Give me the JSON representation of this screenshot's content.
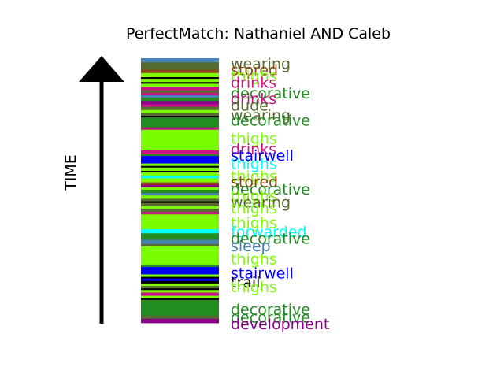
{
  "chart_data": {
    "type": "stacked-timeline",
    "title": "PerfectMatch: Nathaniel AND Caleb",
    "ylabel": "TIME",
    "colors": {
      "olive": "#556b2f",
      "brown": "#8b4513",
      "lime": "#7cfc00",
      "magenta": "#c71585",
      "green": "#228b22",
      "blue": "#0000ff",
      "cyan": "#00ffff",
      "steel": "#4682b4",
      "black": "#000000",
      "purple": "#8b008b"
    },
    "stripes": [
      {
        "c": "steel",
        "v": 5
      },
      {
        "c": "olive",
        "v": 5
      },
      {
        "c": "olive",
        "v": 4
      },
      {
        "c": "brown",
        "v": 4
      },
      {
        "c": "lime",
        "v": 5
      },
      {
        "c": "black",
        "v": 2
      },
      {
        "c": "lime",
        "v": 4
      },
      {
        "c": "black",
        "v": 2
      },
      {
        "c": "lime",
        "v": 4
      },
      {
        "c": "magenta",
        "v": 4
      },
      {
        "c": "olive",
        "v": 3
      },
      {
        "c": "magenta",
        "v": 3
      },
      {
        "c": "steel",
        "v": 3
      },
      {
        "c": "green",
        "v": 4
      },
      {
        "c": "purple",
        "v": 4
      },
      {
        "c": "magenta",
        "v": 3
      },
      {
        "c": "olive",
        "v": 4
      },
      {
        "c": "lime",
        "v": 4
      },
      {
        "c": "olive",
        "v": 3
      },
      {
        "c": "black",
        "v": 2
      },
      {
        "c": "green",
        "v": 4
      },
      {
        "c": "green",
        "v": 8
      },
      {
        "c": "magenta",
        "v": 3
      },
      {
        "c": "lime",
        "v": 25
      },
      {
        "c": "magenta",
        "v": 5
      },
      {
        "c": "green",
        "v": 2
      },
      {
        "c": "blue",
        "v": 9
      },
      {
        "c": "lime",
        "v": 3
      },
      {
        "c": "black",
        "v": 2
      },
      {
        "c": "lime",
        "v": 4
      },
      {
        "c": "black",
        "v": 2
      },
      {
        "c": "lime",
        "v": 4
      },
      {
        "c": "cyan",
        "v": 3
      },
      {
        "c": "lime",
        "v": 5
      },
      {
        "c": "brown",
        "v": 3
      },
      {
        "c": "purple",
        "v": 3
      },
      {
        "c": "lime",
        "v": 3
      },
      {
        "c": "green",
        "v": 4
      },
      {
        "c": "steel",
        "v": 3
      },
      {
        "c": "lime",
        "v": 4
      },
      {
        "c": "olive",
        "v": 3
      },
      {
        "c": "black",
        "v": 2
      },
      {
        "c": "olive",
        "v": 4
      },
      {
        "c": "lime",
        "v": 3
      },
      {
        "c": "olive",
        "v": 4
      },
      {
        "c": "magenta",
        "v": 3
      },
      {
        "c": "lime",
        "v": 18
      },
      {
        "c": "cyan",
        "v": 5
      },
      {
        "c": "green",
        "v": 8
      },
      {
        "c": "steel",
        "v": 5
      },
      {
        "c": "olive",
        "v": 3
      },
      {
        "c": "lime",
        "v": 22
      },
      {
        "c": "green",
        "v": 3
      },
      {
        "c": "blue",
        "v": 9
      },
      {
        "c": "lime",
        "v": 3
      },
      {
        "c": "black",
        "v": 2
      },
      {
        "c": "blue",
        "v": 3
      },
      {
        "c": "black",
        "v": 3
      },
      {
        "c": "lime",
        "v": 3
      },
      {
        "c": "olive",
        "v": 3
      },
      {
        "c": "black",
        "v": 2
      },
      {
        "c": "lime",
        "v": 3
      },
      {
        "c": "magenta",
        "v": 4
      },
      {
        "c": "lime",
        "v": 3
      },
      {
        "c": "black",
        "v": 2
      },
      {
        "c": "green",
        "v": 19
      },
      {
        "c": "olive",
        "v": 4
      },
      {
        "c": "purple",
        "v": 5
      }
    ],
    "labels": [
      {
        "text": "wearing",
        "c": "olive",
        "v": 7
      },
      {
        "text": "stored",
        "c": "brown",
        "v": 15
      },
      {
        "text": "thighs",
        "c": "lime",
        "v": 22
      },
      {
        "text": "drinks",
        "c": "magenta",
        "v": 30
      },
      {
        "text": "decorative",
        "c": "green",
        "v": 43
      },
      {
        "text": "drinks",
        "c": "magenta",
        "v": 50
      },
      {
        "text": "dude",
        "c": "olive",
        "v": 58
      },
      {
        "text": "wearing",
        "c": "olive",
        "v": 70
      },
      {
        "text": "decorative",
        "c": "green",
        "v": 76
      },
      {
        "text": "thighs",
        "c": "lime",
        "v": 98
      },
      {
        "text": "drinks",
        "c": "magenta",
        "v": 111
      },
      {
        "text": "stairwell",
        "c": "blue",
        "v": 119
      },
      {
        "text": "thighs",
        "c": "cyan",
        "v": 129
      },
      {
        "text": "thighs",
        "c": "lime",
        "v": 144
      },
      {
        "text": "stored",
        "c": "brown",
        "v": 151
      },
      {
        "text": "decorative",
        "c": "green",
        "v": 160
      },
      {
        "text": "thighs",
        "c": "lime",
        "v": 168
      },
      {
        "text": "wearing",
        "c": "olive",
        "v": 176
      },
      {
        "text": "thighs",
        "c": "lime",
        "v": 183
      },
      {
        "text": "thighs",
        "c": "lime",
        "v": 201
      },
      {
        "text": "forwarded",
        "c": "cyan",
        "v": 212
      },
      {
        "text": "decorative",
        "c": "green",
        "v": 220
      },
      {
        "text": "sleep",
        "c": "steel",
        "v": 229
      },
      {
        "text": "thighs",
        "c": "lime",
        "v": 245
      },
      {
        "text": "stairwell",
        "c": "blue",
        "v": 262
      },
      {
        "text": "trail",
        "c": "black",
        "v": 273
      },
      {
        "text": "thighs",
        "c": "lime",
        "v": 279
      },
      {
        "text": "decorative",
        "c": "green",
        "v": 306
      },
      {
        "text": "decorative",
        "c": "green",
        "v": 316
      },
      {
        "text": "development",
        "c": "purple",
        "v": 324
      }
    ]
  }
}
